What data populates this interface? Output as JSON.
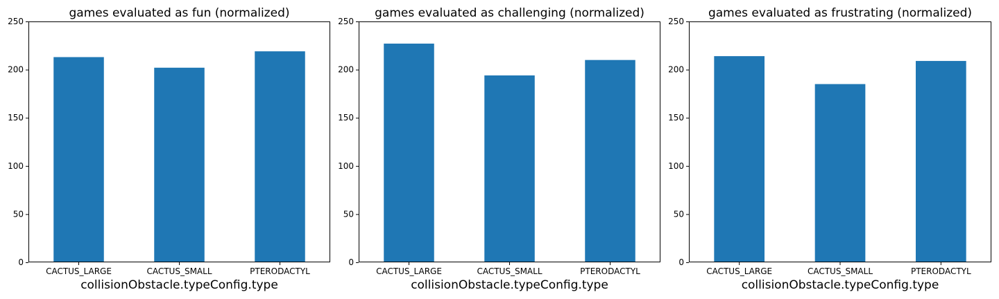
{
  "chart_data": [
    {
      "type": "bar",
      "title": "games evaluated as fun (normalized)",
      "xlabel": "collisionObstacle.typeConfig.type",
      "ylabel": "",
      "categories": [
        "CACTUS_LARGE",
        "CACTUS_SMALL",
        "PTERODACTYL"
      ],
      "values": [
        213,
        202,
        219
      ],
      "ylim": [
        0,
        250
      ],
      "yticks": [
        0,
        50,
        100,
        150,
        200,
        250
      ],
      "grid": false,
      "color": "#1f77b4"
    },
    {
      "type": "bar",
      "title": "games evaluated as challenging (normalized)",
      "xlabel": "collisionObstacle.typeConfig.type",
      "ylabel": "",
      "categories": [
        "CACTUS_LARGE",
        "CACTUS_SMALL",
        "PTERODACTYL"
      ],
      "values": [
        227,
        194,
        210
      ],
      "ylim": [
        0,
        250
      ],
      "yticks": [
        0,
        50,
        100,
        150,
        200,
        250
      ],
      "grid": false,
      "color": "#1f77b4"
    },
    {
      "type": "bar",
      "title": "games evaluated as frustrating (normalized)",
      "xlabel": "collisionObstacle.typeConfig.type",
      "ylabel": "",
      "categories": [
        "CACTUS_LARGE",
        "CACTUS_SMALL",
        "PTERODACTYL"
      ],
      "values": [
        214,
        185,
        209
      ],
      "ylim": [
        0,
        250
      ],
      "yticks": [
        0,
        50,
        100,
        150,
        200,
        250
      ],
      "grid": false,
      "color": "#1f77b4"
    }
  ]
}
